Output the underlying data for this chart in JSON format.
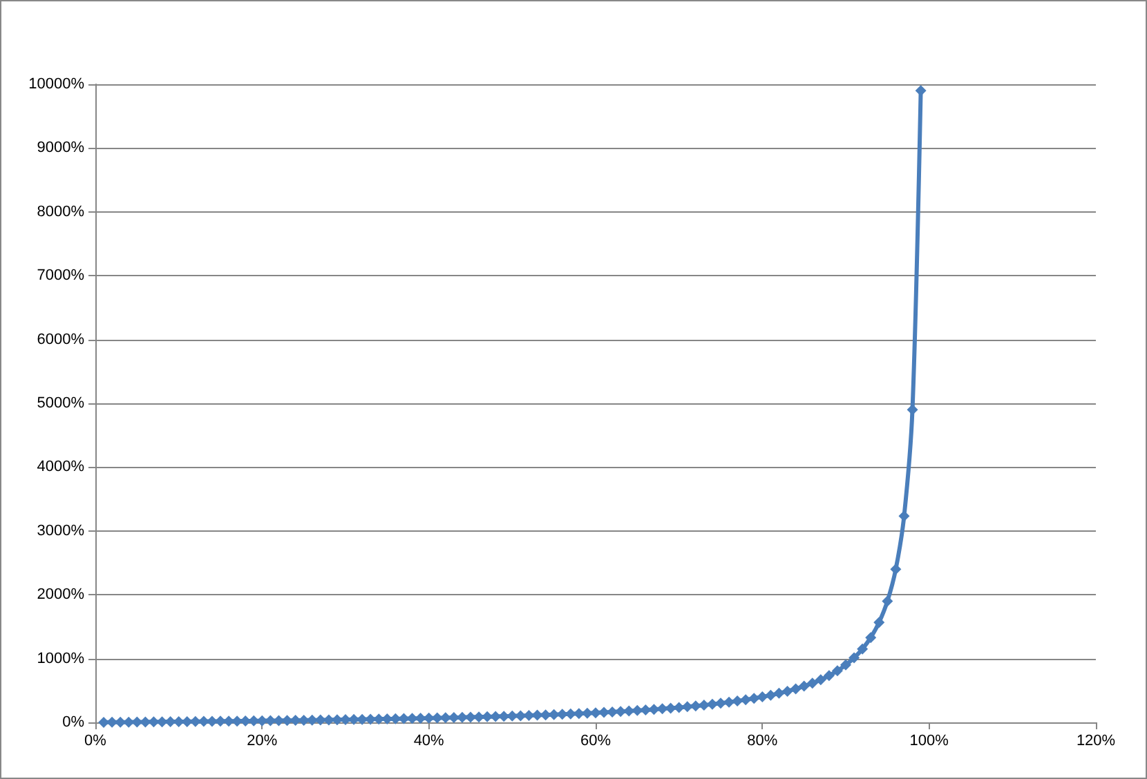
{
  "chart_data": {
    "type": "line",
    "marker": "diamond",
    "grid": "y",
    "x": [
      1,
      2,
      3,
      4,
      5,
      6,
      7,
      8,
      9,
      10,
      11,
      12,
      13,
      14,
      15,
      16,
      17,
      18,
      19,
      20,
      21,
      22,
      23,
      24,
      25,
      26,
      27,
      28,
      29,
      30,
      31,
      32,
      33,
      34,
      35,
      36,
      37,
      38,
      39,
      40,
      41,
      42,
      43,
      44,
      45,
      46,
      47,
      48,
      49,
      50,
      51,
      52,
      53,
      54,
      55,
      56,
      57,
      58,
      59,
      60,
      61,
      62,
      63,
      64,
      65,
      66,
      67,
      68,
      69,
      70,
      71,
      72,
      73,
      74,
      75,
      76,
      77,
      78,
      79,
      80,
      81,
      82,
      83,
      84,
      85,
      86,
      87,
      88,
      89,
      90,
      91,
      92,
      93,
      94,
      95,
      96,
      97,
      98,
      99
    ],
    "series": [
      {
        "color": "#4a7ebb",
        "values": [
          1,
          2,
          3,
          4,
          5,
          6,
          8,
          9,
          10,
          11,
          12,
          14,
          15,
          16,
          18,
          19,
          20,
          22,
          23,
          25,
          27,
          28,
          30,
          32,
          33,
          35,
          37,
          39,
          41,
          43,
          45,
          47,
          49,
          52,
          54,
          56,
          59,
          61,
          64,
          67,
          69,
          72,
          75,
          79,
          82,
          85,
          89,
          92,
          96,
          100,
          104,
          108,
          113,
          117,
          122,
          127,
          133,
          138,
          144,
          150,
          156,
          163,
          170,
          178,
          186,
          194,
          203,
          213,
          223,
          233,
          245,
          257,
          270,
          285,
          300,
          317,
          335,
          355,
          376,
          400,
          426,
          456,
          488,
          525,
          567,
          614,
          669,
          733,
          809,
          900,
          1011,
          1150,
          1329,
          1567,
          1900,
          2400,
          3233,
          4900,
          9900
        ]
      }
    ],
    "xlim": [
      0,
      120
    ],
    "xticks": [
      {
        "value": 0,
        "label": "0%"
      },
      {
        "value": 20,
        "label": "20%"
      },
      {
        "value": 40,
        "label": "40%"
      },
      {
        "value": 60,
        "label": "60%"
      },
      {
        "value": 80,
        "label": "80%"
      },
      {
        "value": 100,
        "label": "100%"
      },
      {
        "value": 120,
        "label": "120%"
      }
    ],
    "ylim": [
      0,
      10000
    ],
    "yticks": [
      {
        "value": 0,
        "label": "0%"
      },
      {
        "value": 1000,
        "label": "1000%"
      },
      {
        "value": 2000,
        "label": "2000%"
      },
      {
        "value": 3000,
        "label": "3000%"
      },
      {
        "value": 4000,
        "label": "4000%"
      },
      {
        "value": 5000,
        "label": "5000%"
      },
      {
        "value": 6000,
        "label": "6000%"
      },
      {
        "value": 7000,
        "label": "7000%"
      },
      {
        "value": 8000,
        "label": "8000%"
      },
      {
        "value": 9000,
        "label": "9000%"
      },
      {
        "value": 10000,
        "label": "10000%"
      }
    ]
  }
}
